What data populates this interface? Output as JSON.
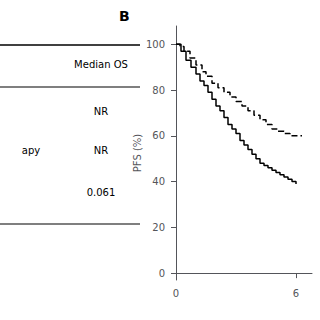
{
  "chart_data": {
    "type": "step",
    "title": "B",
    "ylabel": "PFS (%)",
    "xlim": [
      -0.15,
      6.8
    ],
    "xticks": [
      0,
      6
    ],
    "ylim": [
      -3,
      108
    ],
    "yticks": [
      0,
      20,
      40,
      60,
      80,
      100
    ],
    "grid": false,
    "series": [
      {
        "x": [
          0,
          0.25,
          0.5,
          0.75,
          1.0,
          1.2,
          1.4,
          1.6,
          1.8,
          2.0,
          2.2,
          2.4,
          2.6,
          2.8,
          3.0,
          3.2,
          3.4,
          3.6,
          3.8,
          4.0,
          4.2,
          4.4,
          4.6,
          4.8,
          5.0,
          5.2,
          5.4,
          5.6,
          5.8,
          6.0
        ],
        "values": [
          100,
          97,
          93,
          90,
          87,
          84,
          82,
          79,
          76,
          73,
          71,
          68,
          65,
          63,
          61,
          58,
          56,
          54,
          52,
          50,
          48,
          47,
          46,
          45,
          44,
          43,
          42,
          41,
          40,
          39
        ],
        "color": "#000000",
        "line_style": "solid"
      },
      {
        "x": [
          0,
          0.2,
          0.4,
          0.7,
          1.0,
          1.3,
          1.5,
          1.8,
          2.1,
          2.4,
          2.7,
          3.0,
          3.3,
          3.6,
          3.9,
          4.2,
          4.5,
          4.8,
          5.1,
          5.4,
          5.7,
          6.0,
          6.3
        ],
        "values": [
          100,
          99,
          97,
          94,
          91,
          88,
          86,
          83,
          81,
          79,
          77,
          75,
          73,
          71,
          69,
          67,
          65,
          63,
          62,
          61,
          60,
          60,
          60
        ],
        "color": "#000000",
        "line_style": "dashed"
      }
    ],
    "table": {
      "header": "Median OS",
      "rows": [
        [
          null,
          "NR"
        ],
        [
          "apy",
          "NR"
        ],
        [
          null,
          "0.061"
        ]
      ]
    }
  }
}
